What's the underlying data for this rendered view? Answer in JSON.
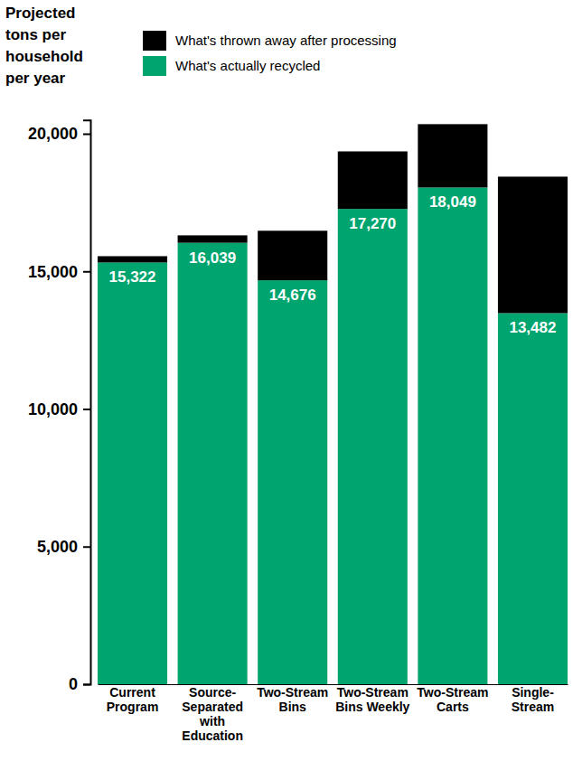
{
  "chart_data": {
    "type": "bar",
    "title": "Projected tons per household per year",
    "categories": [
      "Current Program",
      "Source-Separated with Education",
      "Two-Stream Bins",
      "Two-Stream Bins Weekly",
      "Two-Stream Carts",
      "Single-Stream"
    ],
    "stacked": true,
    "data_labels": true,
    "legend": "top",
    "grid": false,
    "ylim": [
      0,
      20500
    ],
    "yticks": [
      0,
      {
        "value": 5000,
        "label": "5,000"
      },
      {
        "value": 10000,
        "label": "10,000"
      },
      {
        "value": 15000,
        "label": "15,000"
      },
      {
        "value": 20000,
        "label": "20,000"
      }
    ],
    "series": [
      {
        "name": "What's actually recycled",
        "color": "#00a46e",
        "values": [
          15322,
          16039,
          14676,
          17270,
          18049,
          13482
        ],
        "value_labels": [
          "15,322",
          "16,039",
          "14,676",
          "17,270",
          "18,049",
          "13,482"
        ]
      },
      {
        "name": "What's thrown away after processing",
        "color": "#000000",
        "values": [
          230,
          270,
          1800,
          2090,
          2300,
          4960
        ]
      }
    ]
  }
}
